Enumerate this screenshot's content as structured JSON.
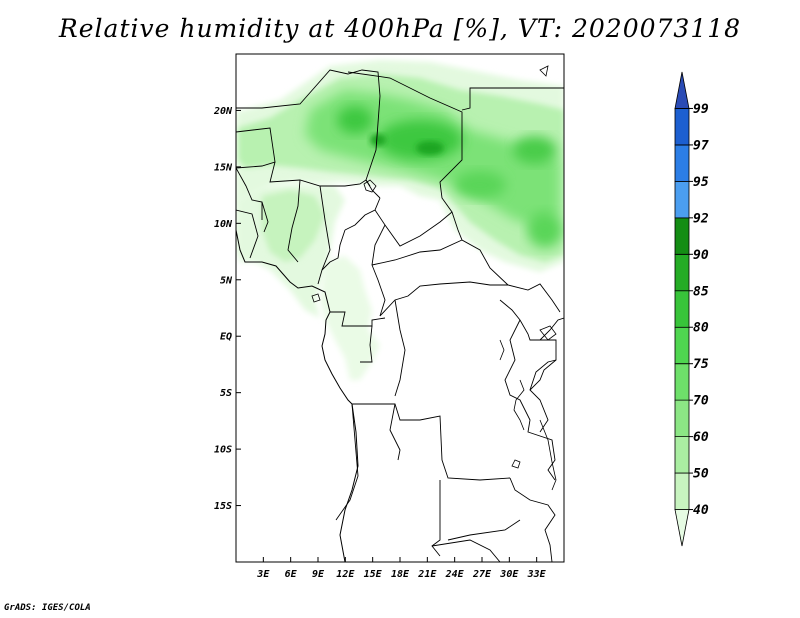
{
  "map": {
    "title": "Relative humidity at 400hPa [%], VT: 2020073118",
    "credit": "GrADS: IGES/COLA",
    "lon_range": [
      0,
      36
    ],
    "lat_range": [
      -20,
      25
    ],
    "lat_ticks": [
      {
        "lat": 20,
        "label": "20N"
      },
      {
        "lat": 15,
        "label": "15N"
      },
      {
        "lat": 10,
        "label": "10N"
      },
      {
        "lat": 5,
        "label": "5N"
      },
      {
        "lat": 0,
        "label": "EQ"
      },
      {
        "lat": -5,
        "label": "5S"
      },
      {
        "lat": -10,
        "label": "10S"
      },
      {
        "lat": -15,
        "label": "15S"
      }
    ],
    "lon_ticks": [
      {
        "lon": 3,
        "label": "3E"
      },
      {
        "lon": 6,
        "label": "6E"
      },
      {
        "lon": 9,
        "label": "9E"
      },
      {
        "lon": 12,
        "label": "12E"
      },
      {
        "lon": 15,
        "label": "15E"
      },
      {
        "lon": 18,
        "label": "18E"
      },
      {
        "lon": 21,
        "label": "21E"
      },
      {
        "lon": 24,
        "label": "24E"
      },
      {
        "lon": 27,
        "label": "27E"
      },
      {
        "lon": 30,
        "label": "30E"
      },
      {
        "lon": 33,
        "label": "33E"
      }
    ]
  },
  "colorbar": {
    "levels": [
      "40",
      "50",
      "60",
      "70",
      "75",
      "80",
      "85",
      "90",
      "92",
      "95",
      "97",
      "99"
    ],
    "colors": [
      "#e6fbe3",
      "#c8f4c0",
      "#aaeea2",
      "#8ce685",
      "#6ee06a",
      "#4fd650",
      "#38c43a",
      "#24ac25",
      "#148d14",
      "#4b9ef0",
      "#2c7ee6",
      "#1c5fd0",
      "#2a4bb5"
    ]
  },
  "chart_data": {
    "type": "heatmap",
    "variable": "Relative humidity",
    "level": "400hPa",
    "units": "%",
    "valid_time": "2020073118",
    "lon_range_deg_e": [
      0,
      36
    ],
    "lat_range_deg": [
      -20,
      25
    ],
    "humid_regions": [
      {
        "lon": [
          0,
          22
        ],
        "lat": [
          13,
          23
        ],
        "rh": "60-92"
      },
      {
        "lon": [
          22,
          36
        ],
        "lat": [
          6,
          22
        ],
        "rh": "50-90"
      },
      {
        "lon": [
          2,
          11
        ],
        "lat": [
          4,
          14
        ],
        "rh": "40-60"
      },
      {
        "lon": [
          9,
          13
        ],
        "lat": [
          0,
          7
        ],
        "rh": "40-60"
      }
    ]
  }
}
